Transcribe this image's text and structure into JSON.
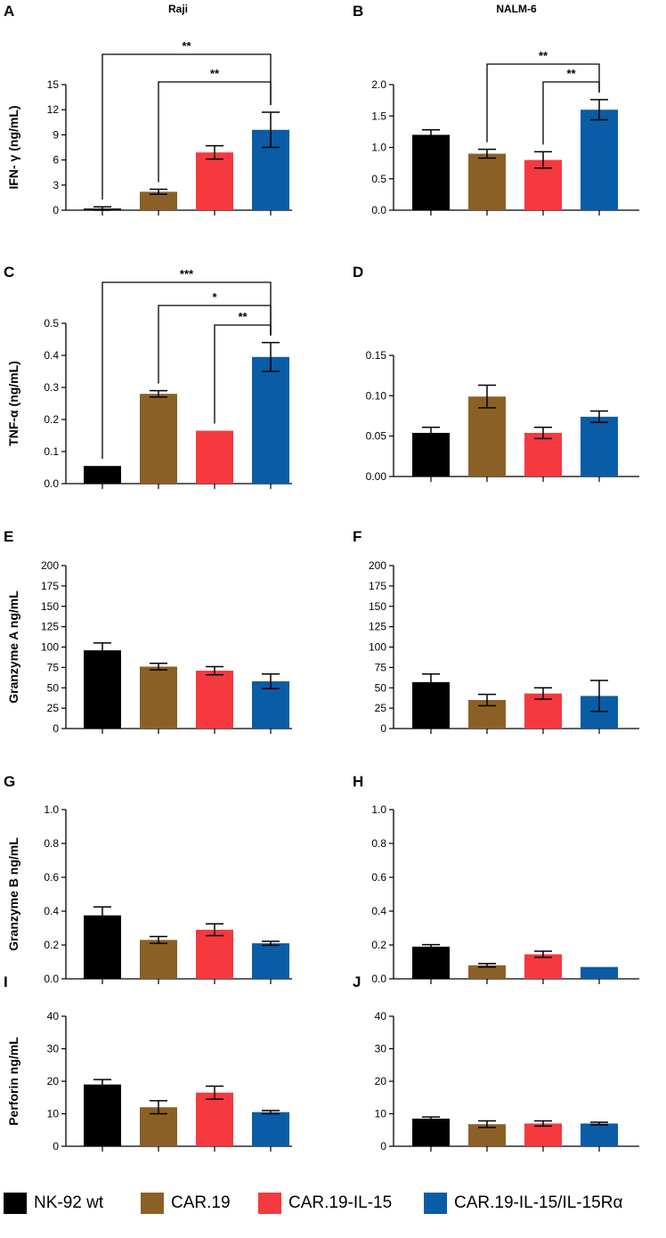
{
  "column_titles": [
    "Raji",
    "NALM-6"
  ],
  "legend": [
    {
      "label": "NK-92 wt",
      "color": "#000000"
    },
    {
      "label": "CAR.19",
      "color": "#8B6027"
    },
    {
      "label": "CAR.19-IL-15",
      "color": "#F5393F"
    },
    {
      "label": "CAR.19-IL-15/IL-15Rα",
      "color": "#0A5CA6"
    }
  ],
  "chart_data": [
    {
      "panel": "A",
      "type": "bar",
      "title": "Raji",
      "ylabel": "IFN- γ (ng/mL)",
      "ylim": [
        0,
        15
      ],
      "yticks": [
        "0",
        "3",
        "6",
        "9",
        "12",
        "15"
      ],
      "categories": [
        "NK-92 wt",
        "CAR.19",
        "CAR.19-IL-15",
        "CAR.19-IL-15/IL-15Rα"
      ],
      "values": [
        0.2,
        2.2,
        6.9,
        9.6
      ],
      "errors": [
        0.2,
        0.3,
        0.8,
        2.1
      ],
      "significance": [
        {
          "from": 0,
          "to": 3,
          "label": "**"
        },
        {
          "from": 1,
          "to": 3,
          "label": "**"
        }
      ]
    },
    {
      "panel": "B",
      "type": "bar",
      "title": "NALM-6",
      "ylabel": "",
      "ylim": [
        0,
        2.0
      ],
      "yticks": [
        "0.0",
        "0.5",
        "1.0",
        "1.5",
        "2.0"
      ],
      "categories": [
        "NK-92 wt",
        "CAR.19",
        "CAR.19-IL-15",
        "CAR.19-IL-15/IL-15Rα"
      ],
      "values": [
        1.2,
        0.9,
        0.8,
        1.6
      ],
      "errors": [
        0.08,
        0.07,
        0.13,
        0.16
      ],
      "significance": [
        {
          "from": 1,
          "to": 3,
          "label": "**"
        },
        {
          "from": 2,
          "to": 3,
          "label": "**"
        }
      ]
    },
    {
      "panel": "C",
      "type": "bar",
      "title": "",
      "ylabel": "TNF-α (ng/mL)",
      "ylim": [
        0,
        0.5
      ],
      "yticks": [
        "0.0",
        "0.1",
        "0.2",
        "0.3",
        "0.4",
        "0.5"
      ],
      "categories": [
        "NK-92 wt",
        "CAR.19",
        "CAR.19-IL-15",
        "CAR.19-IL-15/IL-15Rα"
      ],
      "values": [
        0.055,
        0.28,
        0.165,
        0.395
      ],
      "errors": [
        0,
        0.01,
        0,
        0.045
      ],
      "significance": [
        {
          "from": 0,
          "to": 3,
          "label": "***"
        },
        {
          "from": 1,
          "to": 3,
          "label": "*"
        },
        {
          "from": 2,
          "to": 3,
          "label": "**"
        }
      ]
    },
    {
      "panel": "D",
      "type": "bar",
      "title": "",
      "ylabel": "",
      "ylim": [
        0,
        0.15
      ],
      "yticks": [
        "0.00",
        "0.05",
        "0.10",
        "0.15"
      ],
      "categories": [
        "NK-92 wt",
        "CAR.19",
        "CAR.19-IL-15",
        "CAR.19-IL-15/IL-15Rα"
      ],
      "values": [
        0.054,
        0.099,
        0.054,
        0.074
      ],
      "errors": [
        0.007,
        0.014,
        0.007,
        0.007
      ],
      "significance": []
    },
    {
      "panel": "E",
      "type": "bar",
      "title": "",
      "ylabel": "Granzyme A ng/mL",
      "ylim": [
        0,
        200
      ],
      "yticks": [
        "0",
        "25",
        "50",
        "75",
        "100",
        "125",
        "150",
        "175",
        "200"
      ],
      "categories": [
        "NK-92 wt",
        "CAR.19",
        "CAR.19-IL-15",
        "CAR.19-IL-15/IL-15Rα"
      ],
      "values": [
        96,
        76,
        71,
        58
      ],
      "errors": [
        9,
        4,
        5,
        9
      ],
      "significance": []
    },
    {
      "panel": "F",
      "type": "bar",
      "title": "",
      "ylabel": "",
      "ylim": [
        0,
        200
      ],
      "yticks": [
        "0",
        "25",
        "50",
        "75",
        "100",
        "125",
        "150",
        "175",
        "200"
      ],
      "categories": [
        "NK-92 wt",
        "CAR.19",
        "CAR.19-IL-15",
        "CAR.19-IL-15/IL-15Rα"
      ],
      "values": [
        57,
        35,
        43,
        40
      ],
      "errors": [
        10,
        7,
        7,
        19
      ],
      "significance": []
    },
    {
      "panel": "G",
      "type": "bar",
      "title": "",
      "ylabel": "Granzyme B ng/mL",
      "ylim": [
        0,
        1.0
      ],
      "yticks": [
        "0.0",
        "0.2",
        "0.4",
        "0.6",
        "0.8",
        "1.0"
      ],
      "categories": [
        "NK-92 wt",
        "CAR.19",
        "CAR.19-IL-15",
        "CAR.19-IL-15/IL-15Rα"
      ],
      "values": [
        0.375,
        0.23,
        0.29,
        0.21
      ],
      "errors": [
        0.05,
        0.02,
        0.035,
        0.012
      ],
      "significance": []
    },
    {
      "panel": "H",
      "type": "bar",
      "title": "",
      "ylabel": "",
      "ylim": [
        0,
        1.0
      ],
      "yticks": [
        "0.0",
        "0.2",
        "0.4",
        "0.6",
        "0.8",
        "1.0"
      ],
      "categories": [
        "NK-92 wt",
        "CAR.19",
        "CAR.19-IL-15",
        "CAR.19-IL-15/IL-15Rα"
      ],
      "values": [
        0.19,
        0.08,
        0.145,
        0.07
      ],
      "errors": [
        0.012,
        0.01,
        0.018,
        0
      ],
      "significance": []
    },
    {
      "panel": "I",
      "type": "bar",
      "title": "",
      "ylabel": "Perforin ng/mL",
      "ylim": [
        0,
        40
      ],
      "yticks": [
        "0",
        "10",
        "20",
        "30",
        "40"
      ],
      "categories": [
        "NK-92 wt",
        "CAR.19",
        "CAR.19-IL-15",
        "CAR.19-IL-15/IL-15Rα"
      ],
      "values": [
        19,
        12,
        16.5,
        10.5
      ],
      "errors": [
        1.5,
        2,
        2,
        0.5
      ],
      "significance": []
    },
    {
      "panel": "J",
      "type": "bar",
      "title": "",
      "ylabel": "",
      "ylim": [
        0,
        40
      ],
      "yticks": [
        "0",
        "10",
        "20",
        "30",
        "40"
      ],
      "categories": [
        "NK-92 wt",
        "CAR.19",
        "CAR.19-IL-15",
        "CAR.19-IL-15/IL-15Rα"
      ],
      "values": [
        8.5,
        6.8,
        7.0,
        7.0
      ],
      "errors": [
        0.5,
        1.0,
        0.8,
        0.4
      ],
      "significance": []
    }
  ]
}
